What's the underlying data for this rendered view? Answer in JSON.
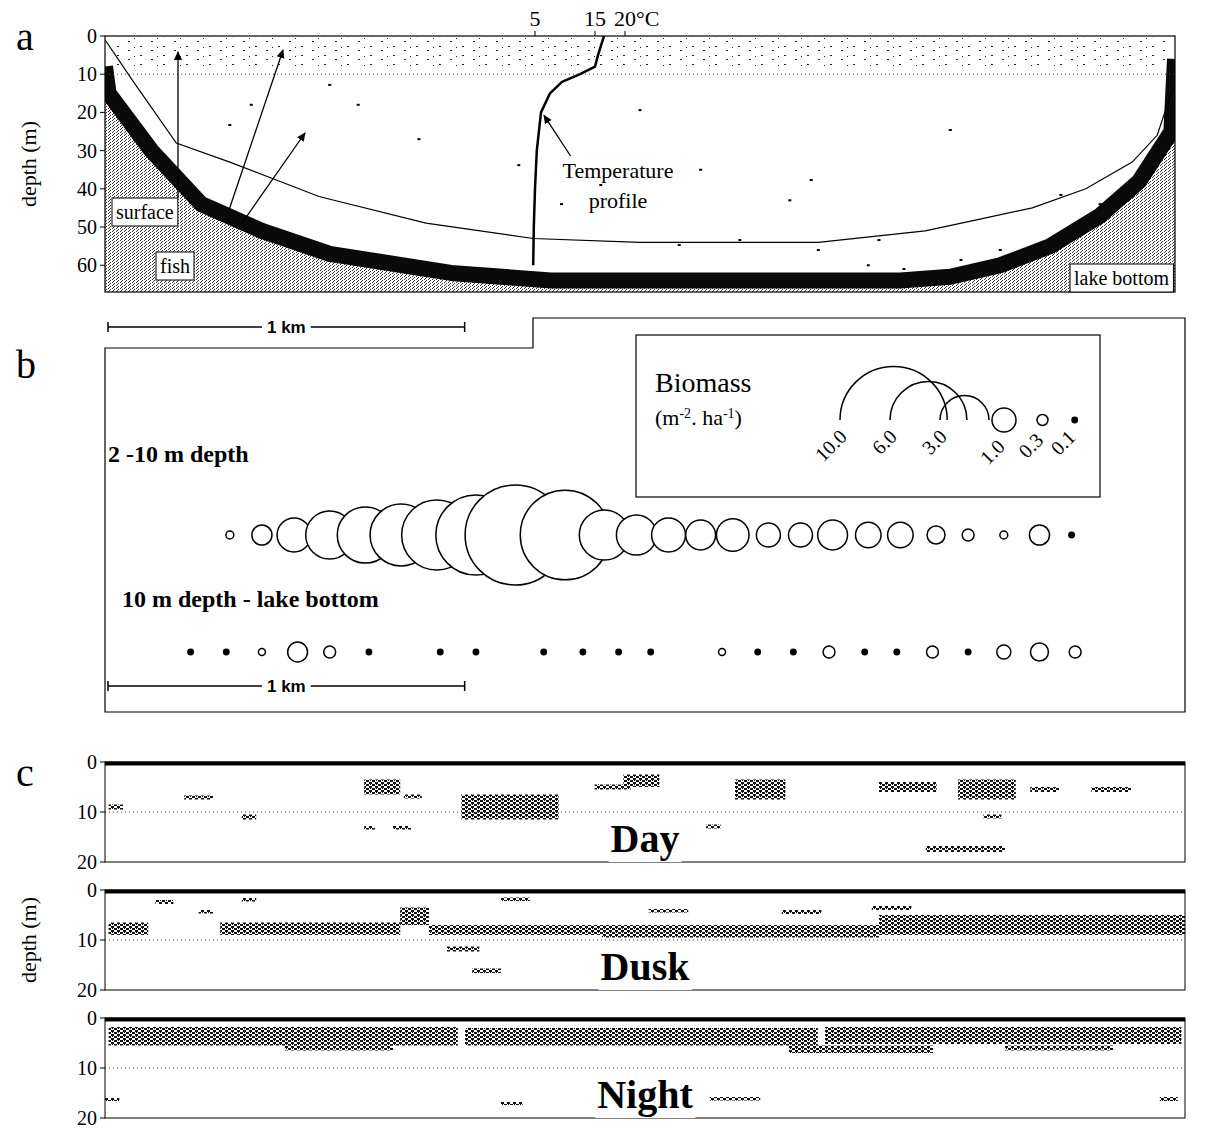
{
  "chart_data": [
    {
      "type": "echogram",
      "panel_label": "a",
      "ylabel": "depth (m)",
      "xlim": [
        0,
        3
      ],
      "ylim": [
        0,
        67
      ],
      "yticks": [
        0,
        10,
        20,
        30,
        40,
        50,
        60
      ],
      "tick_labels": "y",
      "x2lim": [
        0,
        25
      ],
      "x2ticks": [
        5,
        15,
        {
          "value": 20,
          "label": "20°C"
        }
      ],
      "reference_depth": 10,
      "surface_layer": {
        "x": [
          0.02,
          2.98
        ],
        "depth": [
          0.5,
          8
        ]
      },
      "bottom": {
        "x": [
          0,
          0.01,
          0.13,
          0.27,
          0.44,
          0.63,
          0.97,
          1.25,
          2.23,
          2.37,
          2.51,
          2.65,
          2.79,
          2.9,
          2.99,
          3.0
        ],
        "depth": [
          8,
          15,
          30,
          44,
          51,
          57,
          62,
          64,
          64,
          63,
          60,
          55,
          47,
          38,
          25,
          6
        ]
      },
      "boundary": {
        "x": [
          0,
          0.08,
          0.2,
          0.35,
          0.6,
          0.9,
          1.2,
          1.5,
          2.0,
          2.3,
          2.45,
          2.6,
          2.75,
          2.88,
          2.95,
          3.0
        ],
        "depth": [
          1,
          12,
          28,
          33,
          42,
          49,
          53,
          54,
          54,
          51,
          48,
          45,
          40,
          33,
          26,
          12
        ]
      },
      "targets": {
        "x": [
          0.35,
          0.41,
          0.63,
          0.71,
          0.88,
          1.16,
          1.28,
          1.39,
          1.5,
          1.61,
          1.67,
          1.78,
          1.92,
          1.98,
          2.0,
          2.14,
          2.17,
          2.24,
          2.37,
          2.4,
          2.51,
          2.62,
          2.68,
          2.73,
          2.79
        ],
        "depth": [
          23.3,
          18,
          12.8,
          18,
          27,
          33.8,
          44,
          39,
          19.4,
          54.7,
          35,
          53.4,
          43,
          37.7,
          56,
          60,
          53.4,
          61,
          24.6,
          58.6,
          56,
          54.7,
          41.6,
          48.5,
          44
        ]
      },
      "temperature_profile": {
        "label": "Temperature profile",
        "temperature": [
          16.5,
          15.5,
          15,
          12.5,
          9.5,
          7.5,
          6,
          5.3,
          5,
          4.8,
          4.7
        ],
        "depth": [
          0,
          5,
          8,
          10,
          12,
          15,
          20,
          30,
          40,
          50,
          60
        ]
      },
      "annotations": [
        "surface",
        "fish",
        "lake bottom"
      ],
      "scale_bar": {
        "label": "1 km",
        "length": 1
      }
    },
    {
      "type": "bubble",
      "panel_label": "b",
      "xlim": [
        0,
        3
      ],
      "series": [
        {
          "name": "2 -10 m depth",
          "x": [
            0.35,
            0.44,
            0.53,
            0.63,
            0.73,
            0.83,
            0.93,
            1.04,
            1.15,
            1.29,
            1.4,
            1.49,
            1.58,
            1.67,
            1.76,
            1.86,
            1.95,
            2.04,
            2.14,
            2.23,
            2.33,
            2.42,
            2.52,
            2.62,
            2.71
          ],
          "values": [
            0.18,
            0.76,
            1.7,
            2.9,
            3.7,
            4.3,
            5.2,
            6.4,
            9.0,
            7.6,
            3.1,
            2.2,
            1.7,
            1.4,
            1.6,
            1.0,
            1.0,
            1.4,
            1.1,
            1.1,
            0.64,
            0.34,
            0.18,
            0.76,
            0.1
          ]
        },
        {
          "name": "10 m depth - lake bottom",
          "x": [
            0.24,
            0.34,
            0.44,
            0.54,
            0.63,
            0.74,
            0.94,
            1.04,
            1.23,
            1.34,
            1.44,
            1.53,
            1.73,
            1.83,
            1.93,
            2.03,
            2.13,
            2.22,
            2.32,
            2.42,
            2.52,
            2.62,
            2.72
          ],
          "values": [
            0.1,
            0.1,
            0.15,
            0.75,
            0.34,
            0.1,
            0.1,
            0.1,
            0.1,
            0.1,
            0.1,
            0.1,
            0.15,
            0.1,
            0.1,
            0.34,
            0.1,
            0.1,
            0.34,
            0.1,
            0.44,
            0.64,
            0.34
          ]
        }
      ],
      "legend": "upper right",
      "size_legend": {
        "title": "Biomass",
        "unit": "(m-2. ha-1)",
        "values": [
          {
            "value": 10,
            "label": "10.0"
          },
          {
            "value": 6,
            "label": "6.0"
          },
          {
            "value": 3,
            "label": "3.0"
          },
          {
            "value": 1,
            "label": "1.0"
          },
          0.3,
          0.1
        ]
      },
      "scale_bar": {
        "label": "1 km",
        "length": 1
      }
    },
    {
      "type": "strips",
      "panel_label": "c",
      "ylabel": "depth (m)",
      "xlim": [
        0,
        3
      ],
      "ylim": [
        0,
        20
      ],
      "yticks": [
        0,
        10,
        20
      ],
      "tick_labels": "y",
      "reference_depth": 10,
      "strips": [
        {
          "name": "Day",
          "schools": [
            {
              "x": [
                0.01,
                0.05
              ],
              "depth": [
                8.5,
                9.5
              ]
            },
            {
              "x": [
                0.22,
                0.3
              ],
              "depth": [
                6.7,
                7.5
              ]
            },
            {
              "x": [
                0.38,
                0.42
              ],
              "depth": [
                10.5,
                11.5
              ]
            },
            {
              "x": [
                0.72,
                0.82
              ],
              "depth": [
                3.5,
                6.5
              ]
            },
            {
              "x": [
                0.83,
                0.88
              ],
              "depth": [
                6.5,
                7.3
              ]
            },
            {
              "x": [
                0.99,
                1.26
              ],
              "depth": [
                6.5,
                11.5
              ]
            },
            {
              "x": [
                1.36,
                1.46
              ],
              "depth": [
                4.5,
                5.5
              ]
            },
            {
              "x": [
                1.44,
                1.54
              ],
              "depth": [
                2.5,
                5.0
              ]
            },
            {
              "x": [
                1.67,
                1.71
              ],
              "depth": [
                12.5,
                13.3
              ]
            },
            {
              "x": [
                1.75,
                1.89
              ],
              "depth": [
                3.5,
                7.5
              ]
            },
            {
              "x": [
                2.15,
                2.31
              ],
              "depth": [
                4.0,
                6.0
              ]
            },
            {
              "x": [
                2.37,
                2.53
              ],
              "depth": [
                3.5,
                7.5
              ]
            },
            {
              "x": [
                2.44,
                2.49
              ],
              "depth": [
                10.5,
                11.3
              ]
            },
            {
              "x": [
                2.57,
                2.65
              ],
              "depth": [
                5.0,
                6.0
              ]
            },
            {
              "x": [
                2.74,
                2.85
              ],
              "depth": [
                5.0,
                6.0
              ]
            },
            {
              "x": [
                2.28,
                2.5
              ],
              "depth": [
                16.8,
                18.0
              ]
            },
            {
              "x": [
                0.72,
                0.75
              ],
              "depth": [
                12.8,
                13.5
              ]
            },
            {
              "x": [
                0.8,
                0.85
              ],
              "depth": [
                12.8,
                13.5
              ]
            }
          ]
        },
        {
          "name": "Dusk",
          "schools": [
            {
              "x": [
                0.01,
                0.12
              ],
              "depth": [
                6.5,
                9
              ]
            },
            {
              "x": [
                0.14,
                0.19
              ],
              "depth": [
                2,
                2.8
              ]
            },
            {
              "x": [
                0.26,
                0.3
              ],
              "depth": [
                4,
                4.7
              ]
            },
            {
              "x": [
                0.38,
                0.42
              ],
              "depth": [
                1.6,
                2.3
              ]
            },
            {
              "x": [
                0.32,
                0.82
              ],
              "depth": [
                6.5,
                9
              ]
            },
            {
              "x": [
                0.82,
                0.9
              ],
              "depth": [
                3.5,
                7
              ]
            },
            {
              "x": [
                0.9,
                1.38
              ],
              "depth": [
                7,
                9
              ]
            },
            {
              "x": [
                1.1,
                1.18
              ],
              "depth": [
                1.5,
                2.2
              ]
            },
            {
              "x": [
                1.38,
                2.15
              ],
              "depth": [
                7,
                9.5
              ]
            },
            {
              "x": [
                1.51,
                1.62
              ],
              "depth": [
                3.8,
                4.5
              ]
            },
            {
              "x": [
                1.88,
                1.99
              ],
              "depth": [
                4,
                4.8
              ]
            },
            {
              "x": [
                2.13,
                2.24
              ],
              "depth": [
                3.2,
                4
              ]
            },
            {
              "x": [
                2.15,
                3.0
              ],
              "depth": [
                5,
                9
              ]
            },
            {
              "x": [
                0.95,
                1.04
              ],
              "depth": [
                11.3,
                12.3
              ]
            },
            {
              "x": [
                1.02,
                1.1
              ],
              "depth": [
                15.7,
                16.6
              ]
            }
          ]
        },
        {
          "name": "Night",
          "schools": [
            {
              "x": [
                0.01,
                0.98
              ],
              "depth": [
                1.8,
                5.5
              ]
            },
            {
              "x": [
                1.0,
                1.98
              ],
              "depth": [
                2,
                5.5
              ]
            },
            {
              "x": [
                2.0,
                2.99
              ],
              "depth": [
                1.8,
                5.2
              ]
            },
            {
              "x": [
                0.5,
                0.8
              ],
              "depth": [
                5.5,
                6.5
              ]
            },
            {
              "x": [
                1.9,
                2.3
              ],
              "depth": [
                5.5,
                7
              ]
            },
            {
              "x": [
                2.5,
                2.8
              ],
              "depth": [
                5.5,
                6.5
              ]
            },
            {
              "x": [
                0.0,
                0.04
              ],
              "depth": [
                16,
                16.6
              ]
            },
            {
              "x": [
                1.68,
                1.82
              ],
              "depth": [
                15.8,
                16.5
              ]
            },
            {
              "x": [
                2.93,
                2.98
              ],
              "depth": [
                15.8,
                16.6
              ]
            },
            {
              "x": [
                1.1,
                1.16
              ],
              "depth": [
                16.8,
                17.4
              ]
            }
          ]
        }
      ]
    }
  ]
}
